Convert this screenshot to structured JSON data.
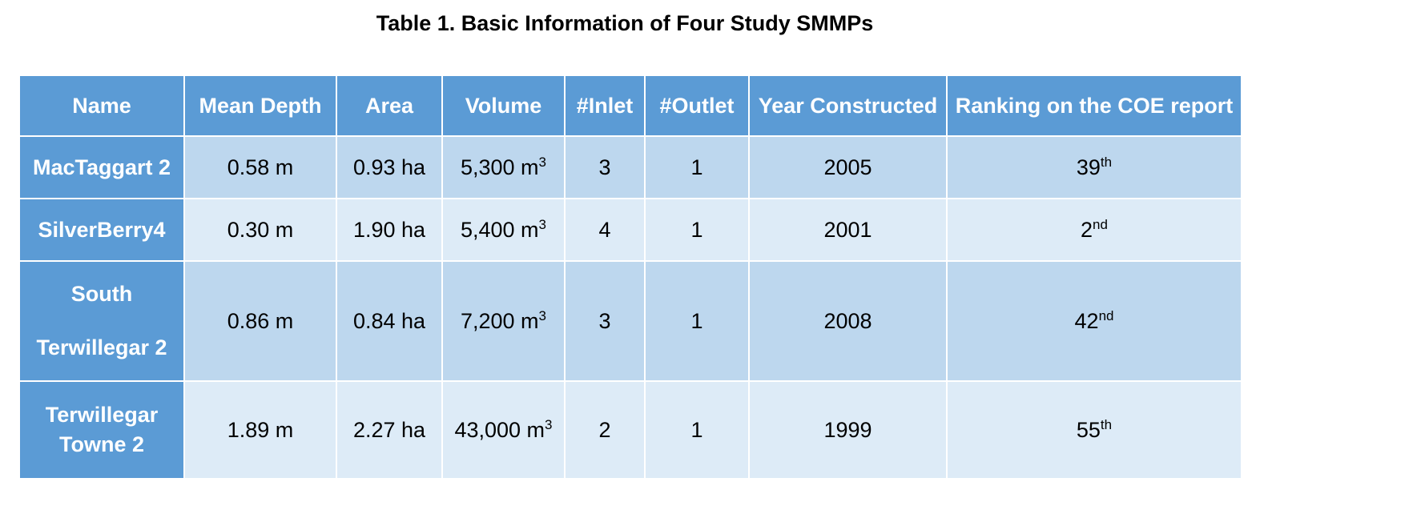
{
  "caption": "Table 1. Basic Information of Four Study SMMPs",
  "columns": [
    "Name",
    "Mean Depth",
    "Area",
    "Volume",
    "#Inlet",
    "#Outlet",
    "Year Constructed",
    "Ranking on the COE report"
  ],
  "volume_unit_sup": "3",
  "rows": [
    {
      "name_lines": [
        "MacTaggart 2"
      ],
      "mean_depth": "0.58 m",
      "area": "0.93 ha",
      "volume": "5,300 m",
      "inlet": "3",
      "outlet": "1",
      "year": "2005",
      "rank": "39",
      "rank_suffix": "th"
    },
    {
      "name_lines": [
        "SilverBerry4"
      ],
      "mean_depth": "0.30 m",
      "area": "1.90 ha",
      "volume": "5,400 m",
      "inlet": "4",
      "outlet": "1",
      "year": "2001",
      "rank": "2",
      "rank_suffix": "nd"
    },
    {
      "name_lines": [
        "South",
        "Terwillegar 2"
      ],
      "mean_depth": "0.86 m",
      "area": "0.84 ha",
      "volume": "7,200 m",
      "inlet": "3",
      "outlet": "1",
      "year": "2008",
      "rank": "42",
      "rank_suffix": "nd"
    },
    {
      "name_lines": [
        "Terwillegar",
        "Towne 2"
      ],
      "mean_depth": "1.89 m",
      "area": "2.27 ha",
      "volume": "43,000 m",
      "inlet": "2",
      "outlet": "1",
      "year": "1999",
      "rank": "55",
      "rank_suffix": "th"
    }
  ]
}
